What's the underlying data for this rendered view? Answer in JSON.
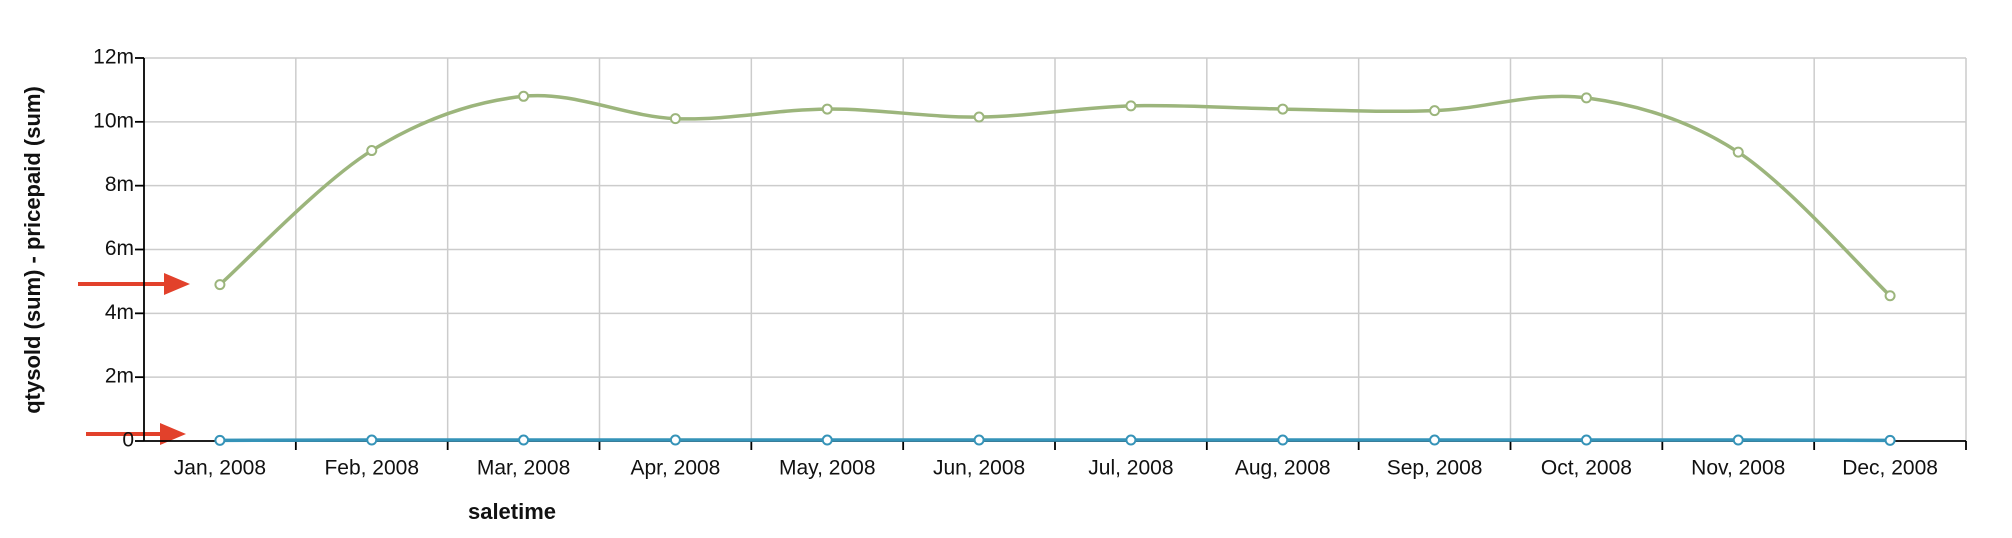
{
  "chart_data": {
    "type": "line",
    "x_label": "saletime",
    "y_label": "qtysold (sum) - pricepaid (sum)",
    "categories": [
      "Jan, 2008",
      "Feb, 2008",
      "Mar, 2008",
      "Apr, 2008",
      "May, 2008",
      "Jun, 2008",
      "Jul, 2008",
      "Aug, 2008",
      "Sep, 2008",
      "Oct, 2008",
      "Nov, 2008",
      "Dec, 2008"
    ],
    "series": [
      {
        "color": "#9cb57c",
        "values": [
          4900000,
          9100000,
          10800000,
          10100000,
          10400000,
          10150000,
          10500000,
          10400000,
          10350000,
          10750000,
          9050000,
          4550000
        ]
      },
      {
        "color": "#3593b8",
        "values": [
          20000,
          30000,
          30000,
          30000,
          30000,
          30000,
          30000,
          30000,
          30000,
          30000,
          30000,
          20000
        ]
      }
    ],
    "ylim": [
      0,
      12000000
    ],
    "yticks": [
      {
        "value": 0,
        "label": "0"
      },
      {
        "value": 2000000,
        "label": "2m"
      },
      {
        "value": 4000000,
        "label": "4m"
      },
      {
        "value": 6000000,
        "label": "6m"
      },
      {
        "value": 8000000,
        "label": "8m"
      },
      {
        "value": 10000000,
        "label": "10m"
      },
      {
        "value": 12000000,
        "label": "12m"
      }
    ],
    "grid": true
  }
}
